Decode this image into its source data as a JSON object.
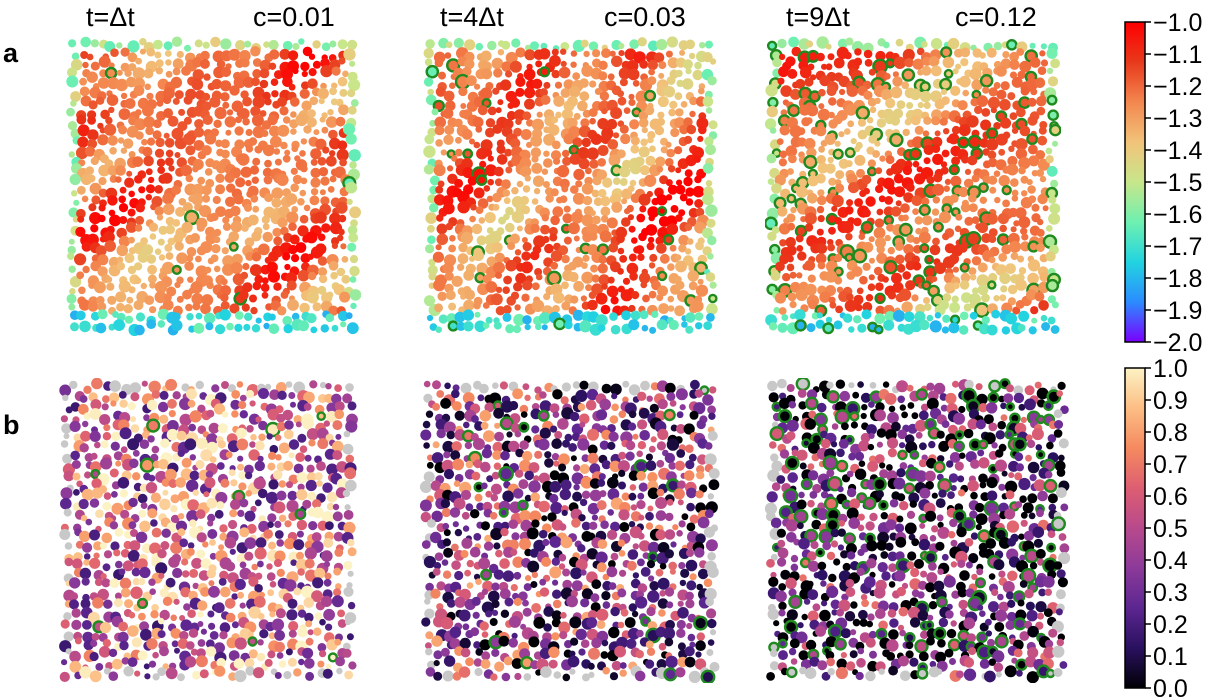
{
  "row_labels": [
    "a",
    "b"
  ],
  "panels": [
    {
      "time": "t=Δt",
      "conc": "c=0.01"
    },
    {
      "time": "t=4Δt",
      "conc": "c=0.03"
    },
    {
      "time": "t=9Δt",
      "conc": "c=0.12"
    }
  ],
  "colorbar_a": {
    "ticks": [
      "−1.0",
      "−1.1",
      "−1.2",
      "−1.3",
      "−1.4",
      "−1.5",
      "−1.6",
      "−1.7",
      "−1.8",
      "−1.9",
      "−2.0"
    ],
    "range": [
      -2.0,
      -1.0
    ],
    "colors": [
      "#7a00ff",
      "#2b8cff",
      "#22d4e0",
      "#6ef0b0",
      "#c8e68a",
      "#f2c37a",
      "#f3874f",
      "#e8391c",
      "#ff0000"
    ]
  },
  "colorbar_b": {
    "ticks": [
      "1.0",
      "0.9",
      "0.8",
      "0.7",
      "0.6",
      "0.5",
      "0.4",
      "0.3",
      "0.2",
      "0.1",
      "0.0"
    ],
    "range": [
      0.0,
      1.0
    ],
    "colors": [
      "#000004",
      "#2a1160",
      "#5c2690",
      "#8c3a9a",
      "#b84a8c",
      "#dd5e72",
      "#f58a5f",
      "#fcbe84",
      "#fcf2c4"
    ]
  },
  "highlight_color": "#1f8a1f",
  "defect_fraction": [
    0.01,
    0.03,
    0.12
  ]
}
